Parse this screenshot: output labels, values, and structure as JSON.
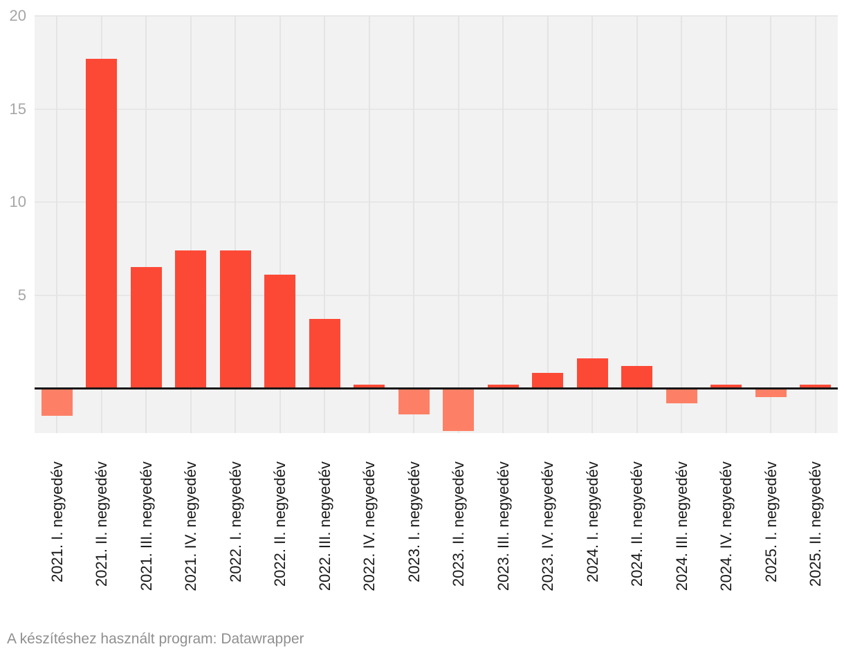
{
  "footer": {
    "attribution": "A készítéshez használt program: Datawrapper"
  },
  "colors": {
    "bar_positive": "#fc4936",
    "bar_negative": "#fd8066",
    "plot_background": "#f2f2f2",
    "gridline": "#e6e6e6",
    "baseline": "#161616",
    "y_tick_text": "#a6a6a6",
    "x_tick_text": "#1a1a1a",
    "footer_text": "#8f8f8f"
  },
  "chart_data": {
    "type": "bar",
    "categories": [
      "2021. I. negyedév",
      "2021. II. negyedév",
      "2021. III. negyedév",
      "2021. IV. negyedév",
      "2022. I. negyedév",
      "2022. II. negyedév",
      "2022. III. negyedév",
      "2022. IV. negyedév",
      "2023. I. negyedév",
      "2023. II. negyedév",
      "2023. III. negyedév",
      "2023. IV. negyedév",
      "2024. I. negyedév",
      "2024. II. negyedév",
      "2024. III. negyedév",
      "2024. IV. negyedév",
      "2025. I. negyedév",
      "2025. II. negyedév"
    ],
    "values": [
      -1.5,
      17.7,
      6.5,
      7.4,
      7.4,
      6.1,
      3.7,
      0.2,
      -1.4,
      -2.3,
      0.2,
      0.8,
      1.6,
      1.2,
      -0.8,
      0.2,
      -0.5,
      0.2
    ],
    "title": "",
    "xlabel": "",
    "ylabel": "",
    "ylim": [
      -2.42,
      20
    ],
    "yticks": [
      5,
      10,
      15,
      20
    ],
    "grid": true,
    "legend": false,
    "bar_color_positive": "#fc4936",
    "bar_color_negative": "#fd8066"
  }
}
